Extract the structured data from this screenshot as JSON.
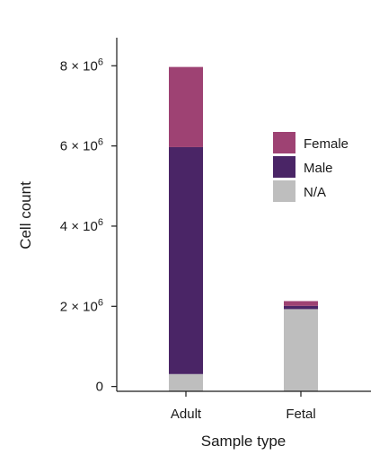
{
  "chart_data": {
    "type": "bar",
    "stacked": true,
    "xlabel": "Sample type",
    "ylabel": "Cell count",
    "categories": [
      "Adult",
      "Fetal"
    ],
    "ylim": [
      -120000,
      8700000
    ],
    "yticks": [
      {
        "value": 0,
        "base": "0",
        "exp": ""
      },
      {
        "value": 2000000,
        "base": "2 × 10",
        "exp": "6"
      },
      {
        "value": 4000000,
        "base": "4 × 10",
        "exp": "6"
      },
      {
        "value": 6000000,
        "base": "6 × 10",
        "exp": "6"
      },
      {
        "value": 8000000,
        "base": "8 × 10",
        "exp": "6"
      }
    ],
    "series": [
      {
        "name": "N/A",
        "color": "#bebebe",
        "values": [
          430000,
          2050000
        ]
      },
      {
        "name": "Male",
        "color": "#4a2566",
        "values": [
          5660000,
          80000
        ]
      },
      {
        "name": "Female",
        "color": "#9e4273",
        "values": [
          2000000,
          120000
        ]
      }
    ],
    "legend": {
      "position": "right",
      "order": [
        "Female",
        "Male",
        "N/A"
      ]
    }
  }
}
